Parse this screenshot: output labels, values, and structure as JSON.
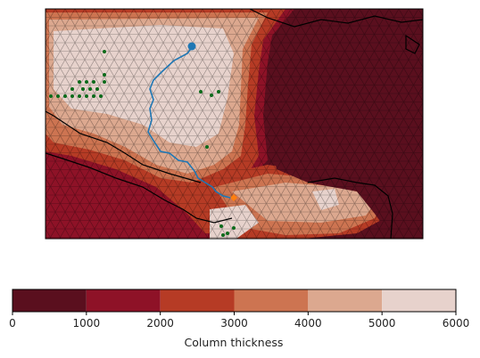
{
  "chart_data": {
    "type": "heatmap",
    "title": "",
    "colorbar": {
      "label": "Column thickness",
      "bounds": [
        0,
        1000,
        2000,
        3000,
        4000,
        5000,
        6000
      ],
      "tick_labels": [
        "0",
        "1000",
        "2000",
        "3000",
        "4000",
        "5000",
        "6000"
      ],
      "colors": [
        "#5a0f1e",
        "#8e1227",
        "#b63b25",
        "#cd7451",
        "#dca88f",
        "#e7d2cc"
      ]
    },
    "map": {
      "projection_ticks": "none",
      "coastline_color": "#000000",
      "mesh_color": "#000000",
      "track": {
        "color": "#1f77b4",
        "start_marker_color": "#1f77b4",
        "end_marker_color": "#ff7f0e"
      },
      "station_marker_color": "#0a6b1a"
    }
  }
}
